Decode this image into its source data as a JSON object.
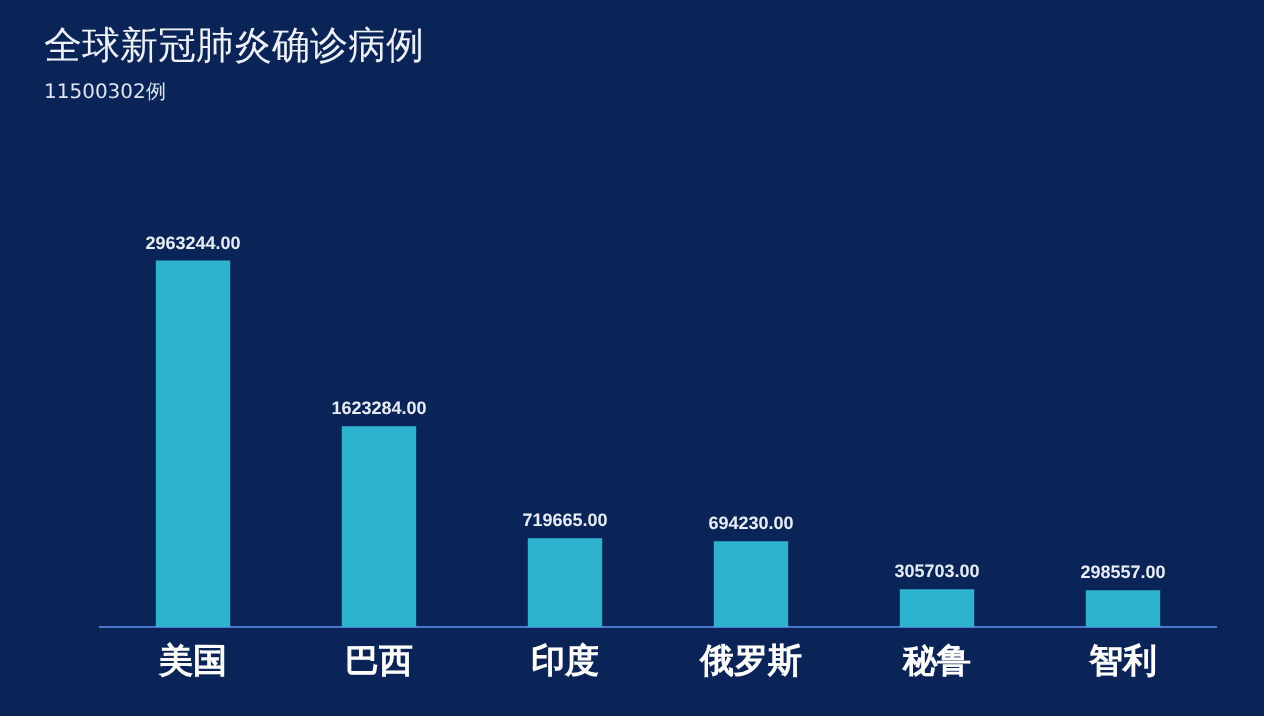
{
  "chart_data": {
    "type": "bar",
    "title": "全球新冠肺炎确诊病例",
    "subtitle": "11500302例",
    "categories": [
      "美国",
      "巴西",
      "印度",
      "俄罗斯",
      "秘鲁",
      "智利"
    ],
    "values": [
      2963244,
      1623284,
      719665,
      694230,
      305703,
      298557
    ],
    "value_labels": [
      "2963244.00",
      "1623284.00",
      "719665.00",
      "694230.00",
      "305703.00",
      "298557.00"
    ],
    "color": "#2eb3cf",
    "tick_labels": "x",
    "grid": false,
    "legend": false
  }
}
